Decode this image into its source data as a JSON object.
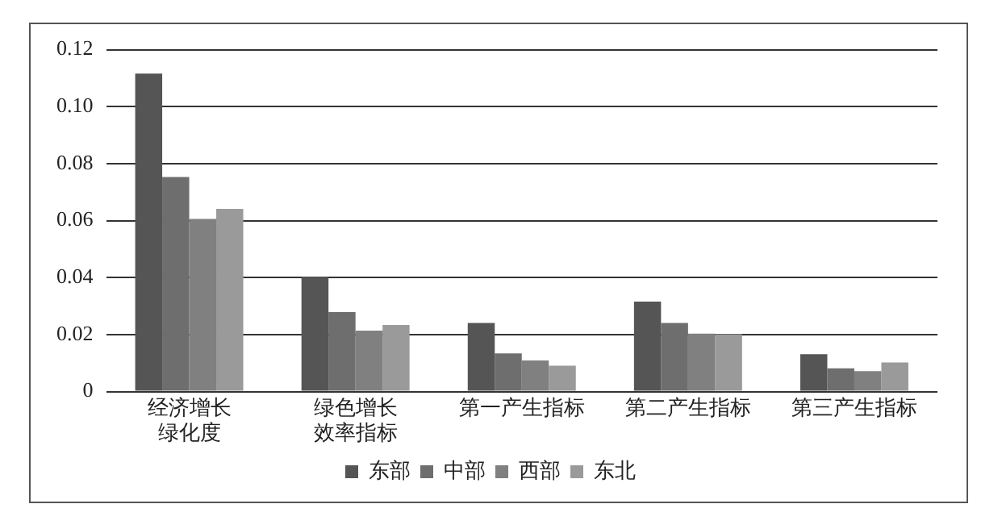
{
  "chart_data": {
    "type": "bar",
    "categories": [
      "经济增长绿化度",
      "绿色增长效率指标",
      "第一产生指标",
      "第二产生指标",
      "第三产生指标"
    ],
    "series": [
      {
        "name": "东部",
        "color": "#555555",
        "values": [
          0.1116,
          0.0403,
          0.0241,
          0.0316,
          0.0131
        ]
      },
      {
        "name": "中部",
        "color": "#6e6e6e",
        "values": [
          0.0753,
          0.0279,
          0.0134,
          0.0241,
          0.0082
        ]
      },
      {
        "name": "西部",
        "color": "#808080",
        "values": [
          0.0606,
          0.0214,
          0.0109,
          0.0203,
          0.0072
        ]
      },
      {
        "name": "东北",
        "color": "#9a9a9a",
        "values": [
          0.0641,
          0.0234,
          0.0091,
          0.0201,
          0.0102
        ]
      }
    ],
    "ylim": [
      0,
      0.12
    ],
    "yticks": [
      {
        "value": 0,
        "label": "0"
      },
      {
        "value": 0.02,
        "label": "0.02"
      },
      {
        "value": 0.04,
        "label": "0.04"
      },
      {
        "value": 0.06,
        "label": "0.06"
      },
      {
        "value": 0.08,
        "label": "0.08"
      },
      {
        "value": 0.1,
        "label": "0.10"
      },
      {
        "value": 0.12,
        "label": "0.12"
      }
    ],
    "grid": "y",
    "legend": "bottom"
  }
}
